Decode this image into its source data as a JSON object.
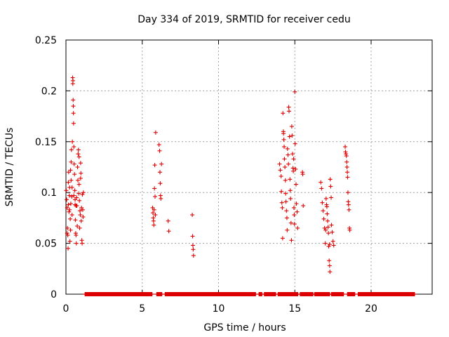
{
  "chart_data": {
    "type": "scatter",
    "title": "Day 334 of 2019, SRMTID for receiver cedu",
    "xlabel": "GPS time / hours",
    "ylabel": "SRMTID / TECUs",
    "xlim": [
      0,
      24
    ],
    "ylim": [
      0,
      0.25
    ],
    "grid": true,
    "marker": "+",
    "color": "#dd0000",
    "xticks": [
      0,
      5,
      10,
      15,
      20
    ],
    "xtick_labels": [
      "0",
      "5",
      "10",
      "15",
      "20"
    ],
    "yticks": [
      0,
      0.05,
      0.1,
      0.15,
      0.2,
      0.25
    ],
    "ytick_labels": [
      "0",
      "0.05",
      "0.1",
      "0.15",
      "0.2",
      "0.25"
    ],
    "series": [
      {
        "name": "SRMTID",
        "points": [
          [
            0.02,
            0.102
          ],
          [
            0.05,
            0.093
          ],
          [
            0.08,
            0.085
          ],
          [
            0.1,
            0.065
          ],
          [
            0.12,
            0.058
          ],
          [
            0.14,
            0.045
          ],
          [
            0.16,
            0.11
          ],
          [
            0.18,
            0.12
          ],
          [
            0.2,
            0.081
          ],
          [
            0.22,
            0.097
          ],
          [
            0.24,
            0.105
          ],
          [
            0.26,
            0.052
          ],
          [
            0.28,
            0.074
          ],
          [
            0.3,
            0.122
          ],
          [
            0.32,
            0.089
          ],
          [
            0.34,
            0.13
          ],
          [
            0.36,
            0.142
          ],
          [
            0.38,
            0.096
          ],
          [
            0.4,
            0.078
          ],
          [
            0.42,
            0.15
          ],
          [
            0.44,
            0.213
          ],
          [
            0.45,
            0.207
          ],
          [
            0.46,
            0.21
          ],
          [
            0.47,
            0.191
          ],
          [
            0.48,
            0.185
          ],
          [
            0.49,
            0.178
          ],
          [
            0.5,
            0.168
          ],
          [
            0.52,
            0.145
          ],
          [
            0.54,
            0.128
          ],
          [
            0.56,
            0.118
          ],
          [
            0.58,
            0.102
          ],
          [
            0.6,
            0.088
          ],
          [
            0.62,
            0.073
          ],
          [
            0.64,
            0.06
          ],
          [
            0.66,
            0.058
          ],
          [
            0.68,
            0.05
          ],
          [
            0.7,
            0.095
          ],
          [
            0.72,
            0.087
          ],
          [
            0.74,
            0.067
          ],
          [
            0.76,
            0.125
          ],
          [
            0.78,
            0.112
          ],
          [
            0.8,
            0.138
          ],
          [
            0.82,
            0.142
          ],
          [
            0.84,
            0.099
          ],
          [
            0.86,
            0.108
          ],
          [
            0.88,
            0.092
          ],
          [
            0.9,
            0.065
          ],
          [
            0.92,
            0.082
          ],
          [
            0.94,
            0.078
          ],
          [
            0.96,
            0.129
          ],
          [
            0.98,
            0.119
          ],
          [
            1.0,
            0.072
          ],
          [
            1.02,
            0.085
          ],
          [
            1.04,
            0.053
          ],
          [
            1.06,
            0.05
          ],
          [
            1.08,
            0.098
          ],
          [
            1.1,
            0.083
          ],
          [
            1.12,
            0.076
          ],
          [
            1.14,
            0.1
          ],
          [
            0.3,
            0.063
          ],
          [
            0.34,
            0.112
          ],
          [
            0.52,
            0.097
          ],
          [
            0.6,
            0.093
          ],
          [
            0.66,
            0.087
          ],
          [
            0.86,
            0.135
          ],
          [
            0.96,
            0.114
          ],
          [
            0.08,
            0.06
          ],
          [
            0.16,
            0.088
          ],
          [
            0.24,
            0.083
          ],
          [
            0.4,
            0.105
          ],
          [
            5.68,
            0.085
          ],
          [
            5.7,
            0.08
          ],
          [
            5.72,
            0.075
          ],
          [
            5.74,
            0.072
          ],
          [
            5.76,
            0.068
          ],
          [
            5.78,
            0.083
          ],
          [
            5.8,
            0.104
          ],
          [
            5.82,
            0.127
          ],
          [
            5.84,
            0.096
          ],
          [
            5.86,
            0.078
          ],
          [
            5.88,
            0.159
          ],
          [
            6.1,
            0.147
          ],
          [
            6.14,
            0.141
          ],
          [
            6.16,
            0.12
          ],
          [
            6.18,
            0.109
          ],
          [
            6.2,
            0.097
          ],
          [
            6.22,
            0.094
          ],
          [
            6.26,
            0.128
          ],
          [
            6.7,
            0.072
          ],
          [
            6.74,
            0.062
          ],
          [
            8.28,
            0.078
          ],
          [
            8.3,
            0.057
          ],
          [
            8.32,
            0.048
          ],
          [
            8.34,
            0.044
          ],
          [
            8.36,
            0.038
          ],
          [
            14.0,
            0.128
          ],
          [
            14.05,
            0.122
          ],
          [
            14.1,
            0.116
          ],
          [
            14.12,
            0.101
          ],
          [
            14.15,
            0.09
          ],
          [
            14.18,
            0.085
          ],
          [
            14.2,
            0.055
          ],
          [
            14.22,
            0.178
          ],
          [
            14.25,
            0.16
          ],
          [
            14.28,
            0.152
          ],
          [
            14.3,
            0.145
          ],
          [
            14.32,
            0.133
          ],
          [
            14.35,
            0.125
          ],
          [
            14.38,
            0.112
          ],
          [
            14.4,
            0.099
          ],
          [
            14.42,
            0.091
          ],
          [
            14.45,
            0.082
          ],
          [
            14.48,
            0.075
          ],
          [
            14.5,
            0.063
          ],
          [
            14.52,
            0.143
          ],
          [
            14.55,
            0.137
          ],
          [
            14.58,
            0.128
          ],
          [
            14.6,
            0.184
          ],
          [
            14.62,
            0.18
          ],
          [
            14.65,
            0.155
          ],
          [
            14.68,
            0.113
          ],
          [
            14.7,
            0.102
          ],
          [
            14.72,
            0.094
          ],
          [
            14.75,
            0.07
          ],
          [
            14.78,
            0.053
          ],
          [
            14.8,
            0.165
          ],
          [
            14.82,
            0.156
          ],
          [
            14.85,
            0.138
          ],
          [
            14.88,
            0.124
          ],
          [
            14.9,
            0.121
          ],
          [
            14.92,
            0.133
          ],
          [
            14.94,
            0.085
          ],
          [
            14.96,
            0.078
          ],
          [
            14.98,
            0.069
          ],
          [
            15.0,
            0.199
          ],
          [
            15.02,
            0.148
          ],
          [
            15.05,
            0.123
          ],
          [
            15.08,
            0.108
          ],
          [
            15.1,
            0.089
          ],
          [
            15.15,
            0.081
          ],
          [
            15.18,
            0.065
          ],
          [
            15.5,
            0.12
          ],
          [
            15.52,
            0.118
          ],
          [
            15.55,
            0.087
          ],
          [
            14.26,
            0.158
          ],
          [
            16.7,
            0.11
          ],
          [
            16.75,
            0.104
          ],
          [
            16.8,
            0.09
          ],
          [
            16.85,
            0.082
          ],
          [
            16.9,
            0.074
          ],
          [
            16.95,
            0.065
          ],
          [
            17.0,
            0.05
          ],
          [
            17.05,
            0.094
          ],
          [
            17.08,
            0.088
          ],
          [
            17.1,
            0.086
          ],
          [
            17.12,
            0.079
          ],
          [
            17.15,
            0.072
          ],
          [
            17.18,
            0.066
          ],
          [
            17.2,
            0.06
          ],
          [
            17.22,
            0.047
          ],
          [
            17.25,
            0.033
          ],
          [
            17.28,
            0.028
          ],
          [
            17.3,
            0.022
          ],
          [
            17.32,
            0.113
          ],
          [
            17.35,
            0.106
          ],
          [
            17.38,
            0.095
          ],
          [
            17.4,
            0.068
          ],
          [
            17.45,
            0.061
          ],
          [
            17.5,
            0.052
          ],
          [
            17.55,
            0.048
          ],
          [
            17.02,
            0.063
          ],
          [
            17.28,
            0.049
          ],
          [
            18.3,
            0.145
          ],
          [
            18.32,
            0.14
          ],
          [
            18.35,
            0.138
          ],
          [
            18.38,
            0.136
          ],
          [
            18.4,
            0.13
          ],
          [
            18.42,
            0.125
          ],
          [
            18.44,
            0.12
          ],
          [
            18.46,
            0.115
          ],
          [
            18.48,
            0.1
          ],
          [
            18.5,
            0.091
          ],
          [
            18.52,
            0.088
          ],
          [
            18.55,
            0.083
          ],
          [
            18.58,
            0.065
          ],
          [
            18.6,
            0.063
          ]
        ],
        "baseline_segments": [
          [
            1.25,
            5.65
          ],
          [
            5.95,
            6.3
          ],
          [
            6.5,
            12.45
          ],
          [
            12.65,
            12.85
          ],
          [
            13.0,
            13.75
          ],
          [
            13.9,
            15.2
          ],
          [
            15.35,
            16.2
          ],
          [
            16.3,
            17.3
          ],
          [
            17.4,
            18.2
          ],
          [
            18.45,
            18.95
          ],
          [
            19.15,
            22.85
          ]
        ]
      }
    ]
  }
}
